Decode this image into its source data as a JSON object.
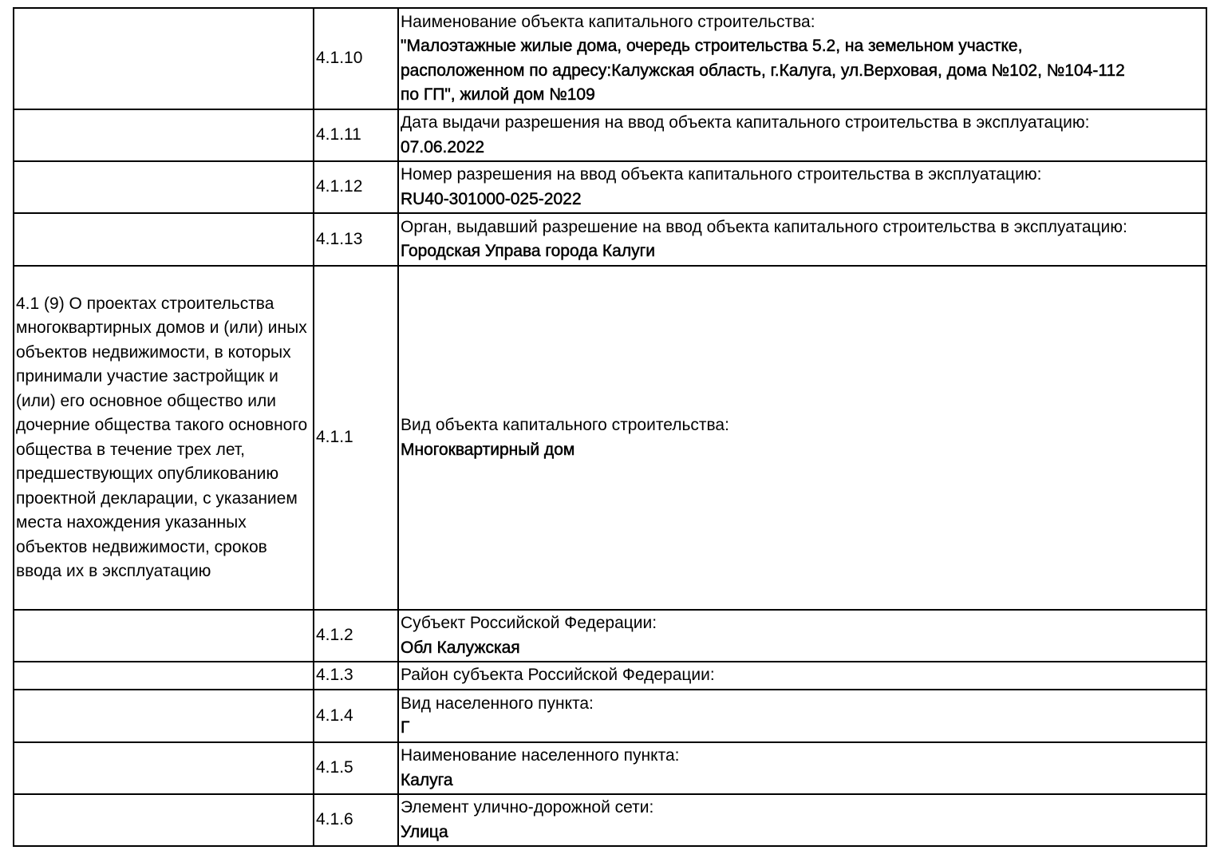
{
  "rows": [
    {
      "section": "",
      "code": "4.1.10",
      "label": "Наименование объекта капитального строительства:",
      "value_lines": [
        "\"Малоэтажные жилые дома, очередь строительства 5.2, на земельном участке,",
        "расположенном по адресу:Калужская область, г.Калуга, ул.Верховая, дома №102, №104-112",
        "по ГП\", жилой дом №109"
      ]
    },
    {
      "section": "",
      "code": "4.1.11",
      "label": "Дата выдачи разрешения на ввод объекта капитального строительства в эксплуатацию:",
      "value_lines": [
        "07.06.2022"
      ]
    },
    {
      "section": "",
      "code": "4.1.12",
      "label": "Номер разрешения на ввод объекта капитального строительства в эксплуатацию:",
      "value_lines": [
        "RU40-301000-025-2022"
      ]
    },
    {
      "section": "",
      "code": "4.1.13",
      "label": "Орган, выдавший разрешение на ввод объекта капитального строительства в эксплуатацию:",
      "value_lines": [
        "Городская Управа города Калуги"
      ]
    },
    {
      "section": "4.1 (9) О проектах строительства многоквартирных домов и (или) иных объектов недвижимости, в которых принимали участие застройщик и (или) его основное общество или дочерние общества такого основного общества в течение трех лет, предшествующих опубликованию проектной декларации, с указанием места нахождения указанных объектов недвижимости, сроков ввода их в эксплуатацию",
      "code": "4.1.1",
      "label": "Вид объекта капитального строительства:",
      "value_lines": [
        "Многоквартирный дом"
      ]
    },
    {
      "section": "",
      "code": "4.1.2",
      "label": "Субъект Российской Федерации:",
      "value_lines": [
        "Обл Калужская"
      ]
    },
    {
      "section": "",
      "code": "4.1.3",
      "label": "Район субъекта Российской Федерации:",
      "value_lines": []
    },
    {
      "section": "",
      "code": "4.1.4",
      "label": "Вид населенного пункта:",
      "value_lines": [
        "Г"
      ]
    },
    {
      "section": "",
      "code": "4.1.5",
      "label": "Наименование населенного пункта:",
      "value_lines": [
        "Калуга"
      ]
    },
    {
      "section": "",
      "code": "4.1.6",
      "label": "Элемент улично-дорожной сети:",
      "value_lines": [
        "Улица"
      ]
    }
  ]
}
